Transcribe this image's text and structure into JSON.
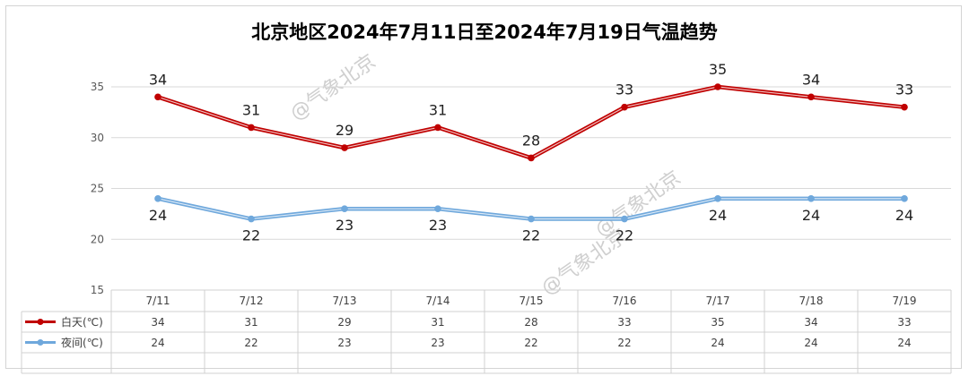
{
  "chart_data": {
    "type": "line",
    "title": "北京地区2024年7月11日至2024年7月19日气温趋势",
    "categories": [
      "7/11",
      "7/12",
      "7/13",
      "7/14",
      "7/15",
      "7/16",
      "7/17",
      "7/18",
      "7/19"
    ],
    "ylim": [
      15,
      35
    ],
    "yticks": [
      15,
      20,
      25,
      30,
      35
    ],
    "grid": true,
    "legend": "data-table",
    "series": [
      {
        "name": "白天(℃)",
        "values": [
          34,
          31,
          29,
          31,
          28,
          33,
          35,
          34,
          33
        ],
        "color": "#c00000",
        "label_position": "above"
      },
      {
        "name": "夜间(℃)",
        "values": [
          24,
          22,
          23,
          23,
          22,
          22,
          24,
          24,
          24
        ],
        "color": "#6fa8dc",
        "label_position": "below"
      }
    ]
  },
  "watermark": "@气象北京"
}
